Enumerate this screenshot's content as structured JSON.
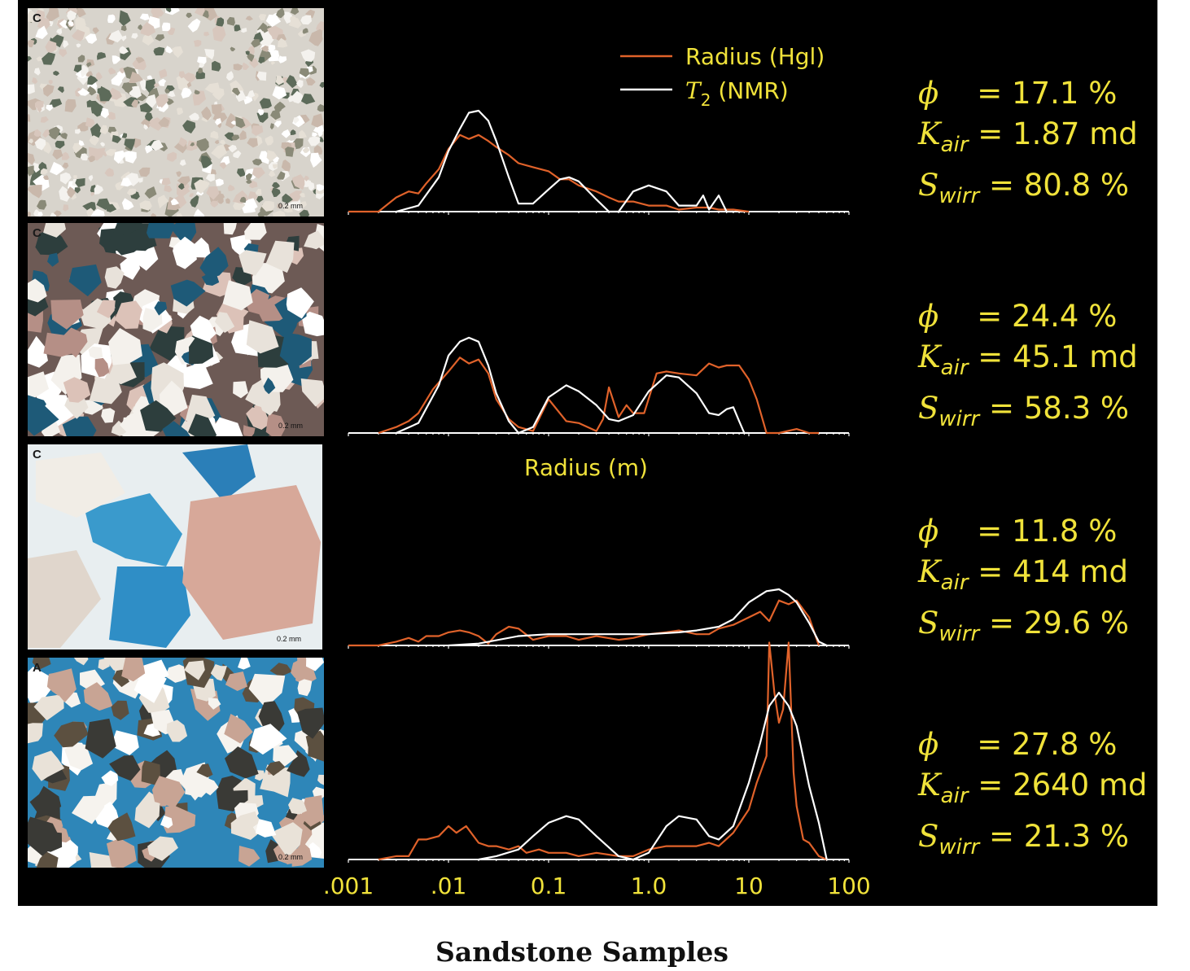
{
  "caption": "Sandstone Samples",
  "legend": {
    "hg_label": "Radius (Hgl)",
    "nmr_label_t": "T",
    "nmr_label_sub": "2",
    "nmr_label_rest": " (NMR)"
  },
  "colors": {
    "hg": "#e0622a",
    "nmr": "#ffffff",
    "text": "#f0e23a",
    "background": "#000000"
  },
  "samples": [
    {
      "thumb_label": "C",
      "scale_label": "0.2 mm",
      "phi": "= 17.1 %",
      "kair": "= 1.87 md",
      "swirr": "= 80.8 %"
    },
    {
      "thumb_label": "C",
      "scale_label": "0.2 mm",
      "phi": "= 24.4 %",
      "kair": "= 45.1 md",
      "swirr": "= 58.3 %"
    },
    {
      "thumb_label": "C",
      "scale_label": "0.2 mm",
      "phi": "= 11.8 %",
      "kair": "= 414 md",
      "swirr": "= 29.6 %"
    },
    {
      "thumb_label": "A",
      "scale_label": "0.2 mm",
      "phi": "= 27.8 %",
      "kair": "= 2640 md",
      "swirr": "= 21.3 %"
    }
  ],
  "symbols": {
    "phi": "ϕ",
    "k": "K",
    "k_sub": "air",
    "s": "S",
    "s_sub": "wirr"
  },
  "chart_data": {
    "type": "line",
    "x_scale": "log",
    "xlabel": "Radius (m)",
    "xlim": [
      0.001,
      100
    ],
    "x_ticks": [
      ".001",
      ".01",
      "0.1",
      "1.0",
      "10",
      "100"
    ],
    "x_tick_values": [
      0.001,
      0.01,
      0.1,
      1,
      10,
      100
    ],
    "panels": [
      {
        "series": [
          {
            "name": "Radius (Hgl)",
            "x": [
              0.001,
              0.002,
              0.003,
              0.004,
              0.005,
              0.006,
              0.008,
              0.01,
              0.013,
              0.016,
              0.02,
              0.025,
              0.03,
              0.04,
              0.05,
              0.07,
              0.1,
              0.13,
              0.16,
              0.2,
              0.3,
              0.4,
              0.5,
              0.7,
              1,
              1.5,
              2,
              3,
              4,
              5,
              7,
              10
            ],
            "y": [
              0,
              0,
              0.14,
              0.2,
              0.18,
              0.28,
              0.42,
              0.62,
              0.76,
              0.72,
              0.76,
              0.7,
              0.64,
              0.56,
              0.48,
              0.44,
              0.4,
              0.32,
              0.32,
              0.26,
              0.2,
              0.14,
              0.1,
              0.1,
              0.06,
              0.06,
              0.02,
              0.04,
              0.04,
              0.02,
              0.02,
              0
            ]
          },
          {
            "name": "T2 (NMR)",
            "x": [
              0.003,
              0.005,
              0.008,
              0.01,
              0.013,
              0.016,
              0.02,
              0.025,
              0.03,
              0.04,
              0.05,
              0.07,
              0.1,
              0.13,
              0.16,
              0.2,
              0.3,
              0.4,
              0.5,
              0.7,
              1,
              1.5,
              2,
              3,
              3.5,
              4,
              5,
              6,
              7
            ],
            "y": [
              0,
              0.06,
              0.34,
              0.6,
              0.82,
              0.98,
              1,
              0.9,
              0.7,
              0.34,
              0.08,
              0.08,
              0.22,
              0.32,
              0.34,
              0.3,
              0.12,
              0,
              0,
              0.2,
              0.26,
              0.2,
              0.06,
              0.06,
              0.16,
              0.02,
              0.16,
              0,
              0
            ]
          }
        ]
      },
      {
        "series": [
          {
            "name": "Radius (Hgl)",
            "x": [
              0.002,
              0.003,
              0.004,
              0.005,
              0.007,
              0.01,
              0.013,
              0.016,
              0.02,
              0.025,
              0.03,
              0.04,
              0.05,
              0.07,
              0.1,
              0.15,
              0.2,
              0.3,
              0.35,
              0.4,
              0.5,
              0.6,
              0.7,
              0.9,
              1.2,
              1.5,
              2,
              3,
              4,
              5,
              6,
              8,
              10,
              12,
              15,
              20,
              30,
              40,
              50
            ],
            "y": [
              0,
              0.06,
              0.12,
              0.2,
              0.44,
              0.62,
              0.76,
              0.7,
              0.74,
              0.6,
              0.34,
              0.14,
              0.06,
              0.02,
              0.34,
              0.12,
              0.1,
              0.02,
              0.14,
              0.46,
              0.16,
              0.28,
              0.2,
              0.2,
              0.6,
              0.62,
              0.6,
              0.58,
              0.7,
              0.66,
              0.68,
              0.68,
              0.54,
              0.34,
              0,
              0,
              0.04,
              0,
              0
            ]
          },
          {
            "name": "T2 (NMR)",
            "x": [
              0.003,
              0.005,
              0.008,
              0.01,
              0.013,
              0.016,
              0.02,
              0.025,
              0.03,
              0.04,
              0.05,
              0.07,
              0.1,
              0.15,
              0.2,
              0.3,
              0.4,
              0.5,
              0.7,
              1,
              1.5,
              2,
              3,
              4,
              5,
              6,
              7,
              8,
              9,
              10
            ],
            "y": [
              0,
              0.1,
              0.48,
              0.78,
              0.92,
              0.96,
              0.92,
              0.68,
              0.4,
              0.12,
              0,
              0.06,
              0.36,
              0.48,
              0.42,
              0.28,
              0.14,
              0.12,
              0.18,
              0.42,
              0.58,
              0.56,
              0.4,
              0.2,
              0.18,
              0.24,
              0.26,
              0.12,
              0,
              0
            ]
          }
        ]
      },
      {
        "series": [
          {
            "name": "Radius (Hgl)",
            "x": [
              0.001,
              0.002,
              0.003,
              0.004,
              0.005,
              0.006,
              0.008,
              0.01,
              0.013,
              0.016,
              0.02,
              0.025,
              0.03,
              0.04,
              0.05,
              0.07,
              0.1,
              0.15,
              0.2,
              0.3,
              0.5,
              0.7,
              1,
              1.5,
              2,
              3,
              4,
              5,
              7,
              10,
              13,
              16,
              20,
              25,
              30,
              40,
              50
            ],
            "y": [
              0,
              0,
              0.04,
              0.08,
              0.04,
              0.1,
              0.1,
              0.14,
              0.16,
              0.14,
              0.1,
              0.02,
              0.12,
              0.2,
              0.18,
              0.06,
              0.1,
              0.1,
              0.06,
              0.1,
              0.06,
              0.08,
              0.12,
              0.14,
              0.16,
              0.12,
              0.12,
              0.18,
              0.22,
              0.3,
              0.36,
              0.26,
              0.48,
              0.44,
              0.48,
              0.3,
              0
            ]
          },
          {
            "name": "T2 (NMR)",
            "x": [
              0.01,
              0.02,
              0.05,
              0.1,
              0.2,
              0.3,
              0.5,
              1,
              2,
              3,
              5,
              7,
              10,
              15,
              20,
              25,
              30,
              40,
              50,
              60
            ],
            "y": [
              0,
              0.02,
              0.1,
              0.12,
              0.12,
              0.12,
              0.12,
              0.12,
              0.14,
              0.16,
              0.2,
              0.28,
              0.46,
              0.58,
              0.6,
              0.54,
              0.46,
              0.24,
              0.04,
              0
            ]
          }
        ]
      },
      {
        "series": [
          {
            "name": "Radius (Hgl)",
            "x": [
              0.002,
              0.003,
              0.004,
              0.005,
              0.006,
              0.008,
              0.01,
              0.012,
              0.015,
              0.02,
              0.025,
              0.03,
              0.04,
              0.05,
              0.06,
              0.08,
              0.1,
              0.15,
              0.2,
              0.3,
              0.5,
              0.7,
              1,
              1.5,
              2,
              3,
              4,
              5,
              7,
              10,
              12,
              15,
              16,
              18,
              20,
              22,
              25,
              28,
              30,
              35,
              40,
              50,
              60
            ],
            "y": [
              0,
              0.02,
              0.02,
              0.12,
              0.12,
              0.14,
              0.2,
              0.16,
              0.2,
              0.1,
              0.08,
              0.08,
              0.06,
              0.08,
              0.04,
              0.06,
              0.04,
              0.04,
              0.02,
              0.04,
              0.02,
              0.02,
              0.06,
              0.08,
              0.08,
              0.08,
              0.1,
              0.08,
              0.16,
              0.3,
              0.46,
              0.62,
              1.3,
              1.0,
              0.82,
              0.9,
              1.3,
              0.52,
              0.32,
              0.12,
              0.1,
              0.02,
              0
            ]
          },
          {
            "name": "T2 (NMR)",
            "x": [
              0.02,
              0.03,
              0.05,
              0.07,
              0.1,
              0.15,
              0.2,
              0.3,
              0.5,
              0.7,
              1,
              1.5,
              2,
              3,
              4,
              5,
              7,
              10,
              13,
              16,
              20,
              25,
              30,
              40,
              50,
              60
            ],
            "y": [
              0,
              0.02,
              0.06,
              0.14,
              0.22,
              0.26,
              0.24,
              0.14,
              0.02,
              0,
              0.04,
              0.2,
              0.26,
              0.24,
              0.14,
              0.12,
              0.2,
              0.46,
              0.7,
              0.92,
              1.0,
              0.92,
              0.8,
              0.44,
              0.22,
              0
            ]
          }
        ]
      }
    ]
  }
}
